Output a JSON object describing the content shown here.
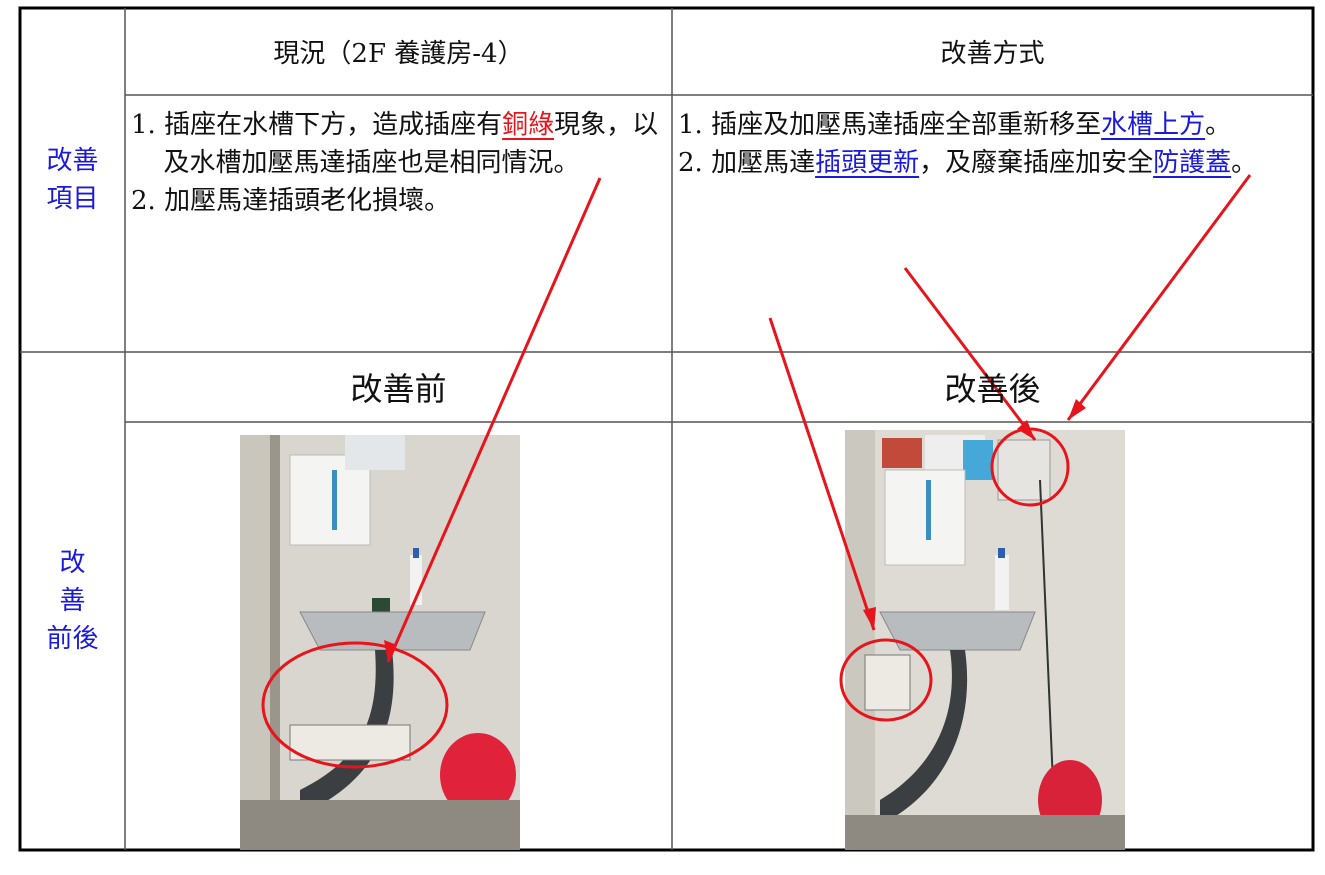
{
  "table": {
    "header": [
      "現況（2F 養護房-4）",
      "改善方式"
    ],
    "row_labels": [
      [
        "改善",
        "項目"
      ],
      [
        "改",
        "善",
        "前後"
      ]
    ],
    "current": [
      {
        "parts": [
          {
            "text": "1. 插座在水槽下方，造成插座有"
          },
          {
            "text": "銅綠",
            "color": "#e8141b"
          },
          {
            "text": "現象，以及水槽加壓馬達插座也是相同情況。"
          }
        ]
      },
      {
        "parts": [
          {
            "text": "2. 加壓馬達插頭老化損壞。"
          }
        ]
      }
    ],
    "improvement": [
      {
        "parts": [
          {
            "text": "1. 插座及加壓馬達插座全部重新移至"
          },
          {
            "text": "水槽上方",
            "color": "#1a1adc"
          },
          {
            "text": "。"
          }
        ]
      },
      {
        "parts": [
          {
            "text": "2. 加壓馬達"
          },
          {
            "text": "插頭更新",
            "color": "#1a1adc"
          },
          {
            "text": "，及廢棄插座加安全"
          },
          {
            "text": "防護蓋",
            "color": "#1a1adc"
          },
          {
            "text": "。"
          }
        ]
      }
    ],
    "photo_headers": [
      "改善前",
      "改善後"
    ]
  }
}
